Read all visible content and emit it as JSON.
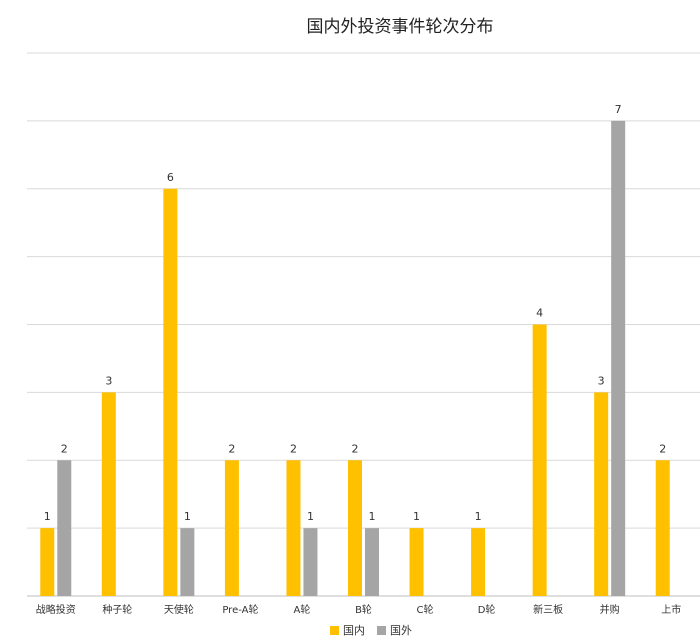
{
  "chart_data": {
    "type": "bar",
    "title": "国内外投资事件轮次分布",
    "xlabel": "",
    "ylabel": "",
    "categories": [
      "战略投资",
      "种子轮",
      "天使轮",
      "Pre-A轮",
      "A轮",
      "B轮",
      "C轮",
      "D轮",
      "新三板",
      "并购",
      "上市"
    ],
    "series": [
      {
        "name": "国内",
        "color": "#FFC000",
        "values": [
          1,
          3,
          6,
          2,
          2,
          2,
          1,
          1,
          4,
          3,
          2
        ]
      },
      {
        "name": "国外",
        "color": "#A5A5A5",
        "values": [
          2,
          null,
          1,
          null,
          1,
          1,
          null,
          null,
          null,
          7,
          null
        ]
      }
    ],
    "ylim": [
      0,
      8
    ],
    "grid": true,
    "legend_position": "bottom"
  }
}
